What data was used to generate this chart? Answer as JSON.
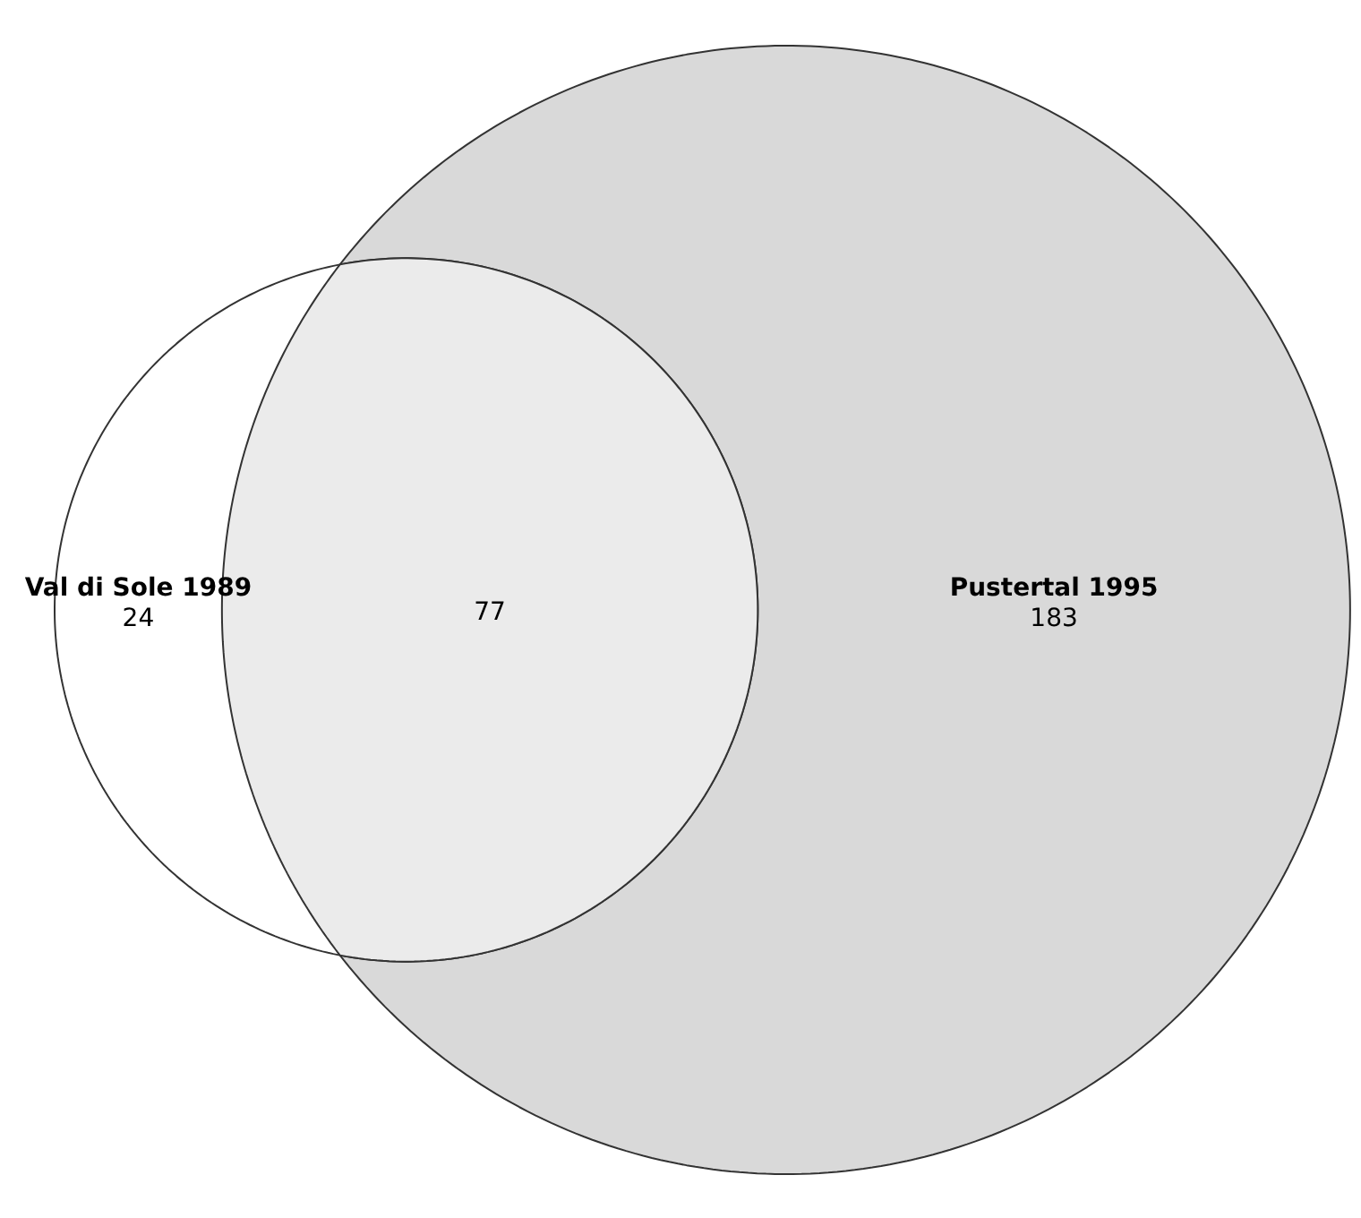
{
  "chart_data": {
    "type": "other",
    "categories": [
      "Val di Sole 1989",
      null,
      "Pustertal 1995"
    ],
    "values": [
      24,
      77,
      183
    ],
    "colors": [
      "#ffffff",
      "#ebebeb",
      "#d9d9d9"
    ],
    "data_labels": true
  }
}
